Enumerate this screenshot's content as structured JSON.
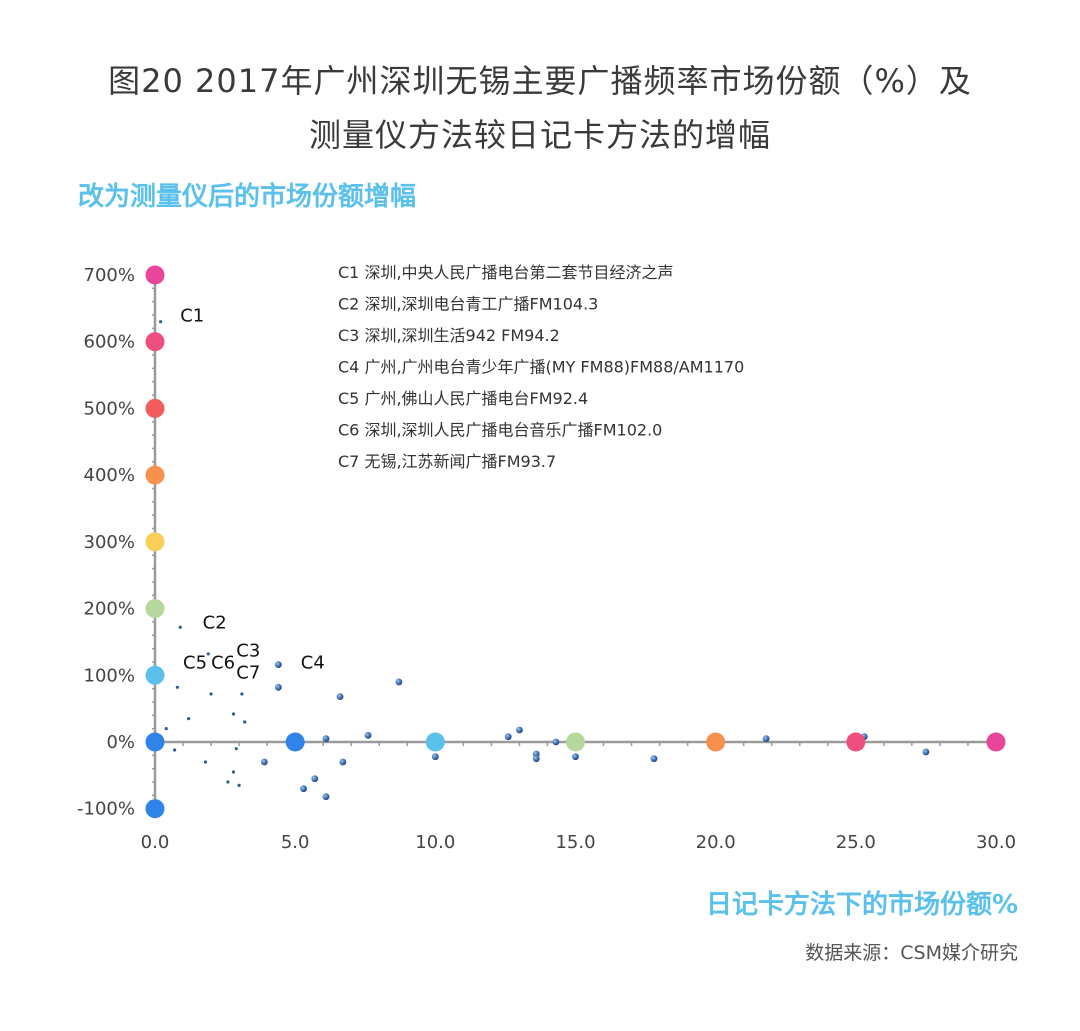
{
  "title_line1": "图20 2017年广州深圳无锡主要广播频率市场份额（%）及",
  "title_line2": "测量仪方法较日记卡方法的增幅",
  "source": "数据来源：CSM媒介研究",
  "chart_data": {
    "type": "scatter",
    "ylabel": "改为测量仪后的市场份额增幅",
    "xlabel": "日记卡方法下的市场份额%",
    "xlim": [
      0,
      30
    ],
    "ylim": [
      -100,
      700
    ],
    "x_ticks": [
      "0.0",
      "5.0",
      "10.0",
      "15.0",
      "20.0",
      "25.0",
      "30.0"
    ],
    "y_ticks": [
      "-100%",
      "0%",
      "100%",
      "200%",
      "300%",
      "400%",
      "500%",
      "600%",
      "700%"
    ],
    "legend": [
      "C1  深圳,中央人民广播电台第二套节目经济之声",
      "C2  深圳,深圳电台青工广播FM104.3",
      "C3  深圳,深圳生活942 FM94.2",
      "C4  广州,广州电台青少年广播(MY FM88)FM88/AM1170",
      "C5  广州,佛山人民广播电台FM92.4",
      "C6  深圳,深圳人民广播电台音乐广播FM102.0",
      "C7  无锡,江苏新闻广播FM93.7"
    ],
    "labels": [
      {
        "text": "C1",
        "x": 0.9,
        "y": 630
      },
      {
        "text": "C2",
        "x": 1.7,
        "y": 170
      },
      {
        "text": "C3",
        "x": 2.9,
        "y": 128
      },
      {
        "text": "C4",
        "x": 5.2,
        "y": 110
      },
      {
        "text": "C5",
        "x": 1.0,
        "y": 110
      },
      {
        "text": "C6",
        "x": 2.0,
        "y": 110
      },
      {
        "text": "C7",
        "x": 2.9,
        "y": 95
      }
    ],
    "y_axis_markers": [
      {
        "y": 700,
        "color": "#e8469b"
      },
      {
        "y": 600,
        "color": "#ef4f7e"
      },
      {
        "y": 500,
        "color": "#f25c5c"
      },
      {
        "y": 400,
        "color": "#f7914d"
      },
      {
        "y": 300,
        "color": "#f9cf57"
      },
      {
        "y": 200,
        "color": "#b5d99c"
      },
      {
        "y": 100,
        "color": "#5bc0eb"
      },
      {
        "y": 0,
        "color": "#2e84e8"
      },
      {
        "y": -100,
        "color": "#2e84e8"
      }
    ],
    "x_axis_markers": [
      {
        "x": 5,
        "color": "#2e84e8"
      },
      {
        "x": 10,
        "color": "#5bc0eb"
      },
      {
        "x": 15,
        "color": "#b5d99c"
      },
      {
        "x": 20,
        "color": "#f7914d"
      },
      {
        "x": 25,
        "color": "#ef4f7e"
      },
      {
        "x": 30,
        "color": "#e8469b"
      }
    ],
    "points": [
      {
        "x": 0.2,
        "y": 630
      },
      {
        "x": 0.9,
        "y": 172
      },
      {
        "x": 1.9,
        "y": 132
      },
      {
        "x": 4.4,
        "y": 116
      },
      {
        "x": 8.7,
        "y": 90
      },
      {
        "x": 4.4,
        "y": 82
      },
      {
        "x": 6.6,
        "y": 68
      },
      {
        "x": 3.1,
        "y": 72
      },
      {
        "x": 2.0,
        "y": 72
      },
      {
        "x": 0.8,
        "y": 82
      },
      {
        "x": 1.2,
        "y": 35
      },
      {
        "x": 2.8,
        "y": 42
      },
      {
        "x": 3.2,
        "y": 30
      },
      {
        "x": 7.6,
        "y": 10
      },
      {
        "x": 6.1,
        "y": 5
      },
      {
        "x": 12.6,
        "y": 8
      },
      {
        "x": 13.0,
        "y": 18
      },
      {
        "x": 14.3,
        "y": 0
      },
      {
        "x": 13.6,
        "y": -18
      },
      {
        "x": 13.6,
        "y": -25
      },
      {
        "x": 10.0,
        "y": -22
      },
      {
        "x": 15.0,
        "y": -22
      },
      {
        "x": 17.8,
        "y": -25
      },
      {
        "x": 21.8,
        "y": 5
      },
      {
        "x": 25.3,
        "y": 8
      },
      {
        "x": 27.5,
        "y": -15
      },
      {
        "x": 6.7,
        "y": -30
      },
      {
        "x": 5.7,
        "y": -55
      },
      {
        "x": 5.3,
        "y": -70
      },
      {
        "x": 6.1,
        "y": -82
      },
      {
        "x": 2.8,
        "y": -45
      },
      {
        "x": 2.6,
        "y": -60
      },
      {
        "x": 3.0,
        "y": -65
      },
      {
        "x": 1.8,
        "y": -30
      },
      {
        "x": 0.7,
        "y": -12
      },
      {
        "x": 0.4,
        "y": 20
      },
      {
        "x": 3.9,
        "y": -30
      },
      {
        "x": 2.9,
        "y": -10
      }
    ]
  }
}
